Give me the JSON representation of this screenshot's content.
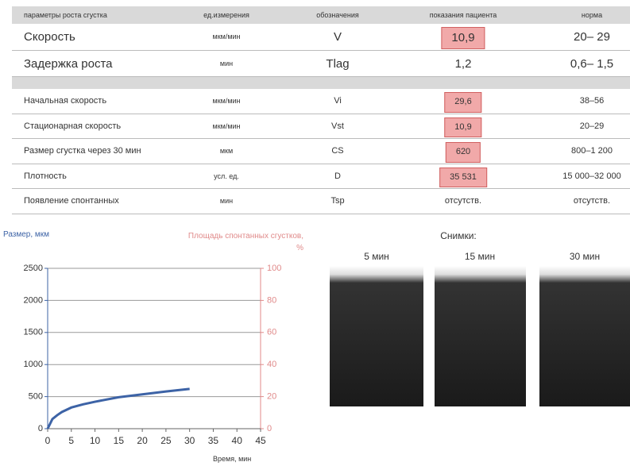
{
  "table": {
    "header": [
      "параметры роста сгустка",
      "ед.измерения",
      "обозначения",
      "показания пациента",
      "норма"
    ],
    "main_rows": [
      {
        "cells": [
          "Скорость",
          "мкм/мин",
          "V",
          "10,9",
          "20– 29"
        ],
        "highlight": true
      },
      {
        "cells": [
          "Задержка роста",
          "мин",
          "Tlag",
          "1,2",
          "0,6– 1,5"
        ],
        "highlight": false
      }
    ],
    "detail_rows": [
      {
        "cells": [
          "Начальная скорость",
          "мкм/мин",
          "Vi",
          "29,6",
          "38–56"
        ],
        "highlight": true
      },
      {
        "cells": [
          "Стационарная скорость",
          "мкм/мин",
          "Vst",
          "10,9",
          "20–29"
        ],
        "highlight": true
      },
      {
        "cells": [
          "Размер сгустка через 30 мин",
          "мкм",
          "CS",
          "620",
          "800–1 200"
        ],
        "highlight": true
      },
      {
        "cells": [
          "Плотность",
          "усл. ед.",
          "D",
          "35 531",
          "15 000–32 000"
        ],
        "highlight": true
      },
      {
        "cells": [
          "Появление спонтанных",
          "мин",
          "Tsp",
          "отсутств.",
          "отсутств."
        ],
        "highlight": false
      }
    ]
  },
  "chart_data": {
    "type": "line",
    "y_label": "Размер, мкм",
    "y2_label": "Площадь спонтанных сгустков, %",
    "x_label": "Время, мин",
    "x": [
      0,
      1,
      2,
      3,
      5,
      7.5,
      10,
      15,
      20,
      25,
      30
    ],
    "series": [
      {
        "color": "#3d63a6",
        "values": [
          0,
          150,
          210,
          260,
          330,
          380,
          420,
          490,
          535,
          580,
          620
        ]
      }
    ],
    "xlim": [
      0,
      45
    ],
    "xticks": [
      0,
      5,
      10,
      15,
      20,
      25,
      30,
      35,
      40,
      45
    ],
    "ylim": [
      0,
      2500
    ],
    "yticks": [
      0,
      500,
      1000,
      1500,
      2000,
      2500
    ],
    "y2lim": [
      0,
      100
    ],
    "y2ticks": [
      0,
      20,
      40,
      60,
      80,
      100
    ],
    "y_color": "#3d63a6",
    "y2_color": "#e08a8a",
    "grid": true
  },
  "images": {
    "title": "Снимки:",
    "labels": [
      "5 мин",
      "15 мин",
      "30 мин"
    ]
  }
}
